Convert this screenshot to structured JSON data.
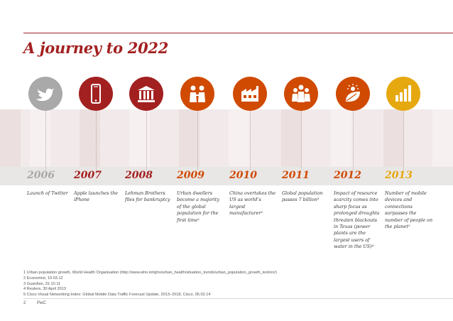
{
  "title": "A journey to 2022",
  "timeline": [
    {
      "year": "2006",
      "event": "Launch of Twitter",
      "icon": "twitter-bird-icon",
      "color": "#a9a9a9"
    },
    {
      "year": "2007",
      "event": "Apple launches the iPhone",
      "icon": "smartphone-icon",
      "color": "#a32020"
    },
    {
      "year": "2008",
      "event": "Lehman Brothers files for bankruptcy",
      "icon": "bank-building-icon",
      "color": "#a32020"
    },
    {
      "year": "2009",
      "event": "Urban dwellers become a majority of the global population for the first time¹",
      "icon": "people-icon",
      "color": "#d04a02"
    },
    {
      "year": "2010",
      "event": "China overtakes the US as world’s largest manufacturer²",
      "icon": "factory-icon",
      "color": "#d04a02"
    },
    {
      "year": "2011",
      "event": "Global population passes 7 billion³",
      "icon": "population-icon",
      "color": "#d04a02"
    },
    {
      "year": "2012",
      "event": "Impact of resource scarcity comes into sharp focus as prolonged droughts threaten blackouts in Texas (power plants are the largest users of water in the US)⁴",
      "icon": "sun-leaf-icon",
      "color": "#d04a02"
    },
    {
      "year": "2013",
      "event": "Number of mobile devices and connections surpasses the number of people on the planet⁵",
      "icon": "signal-bars-icon",
      "color": "#e6a80f"
    }
  ],
  "footnotes": [
    "1 Urban population growth, World Health Organisation (http://www.who.int/gho/urban_health/situation_trends/urban_population_growth_text/en/)",
    "2 Economist, 10.03.12",
    "3 Guardian, 31.10.11",
    "4 Reuters, 30 April 2013",
    "5 Cisco Visual Networking Index: Global Mobile Data Traffic Forecast Update, 2013–2018, Cisco, 05.02.14"
  ],
  "page_number": "2",
  "brand": "PwC",
  "colors": {
    "accent": "#a32020",
    "orange": "#d04a02",
    "gold": "#e6a80f",
    "grey": "#a9a9a9"
  }
}
